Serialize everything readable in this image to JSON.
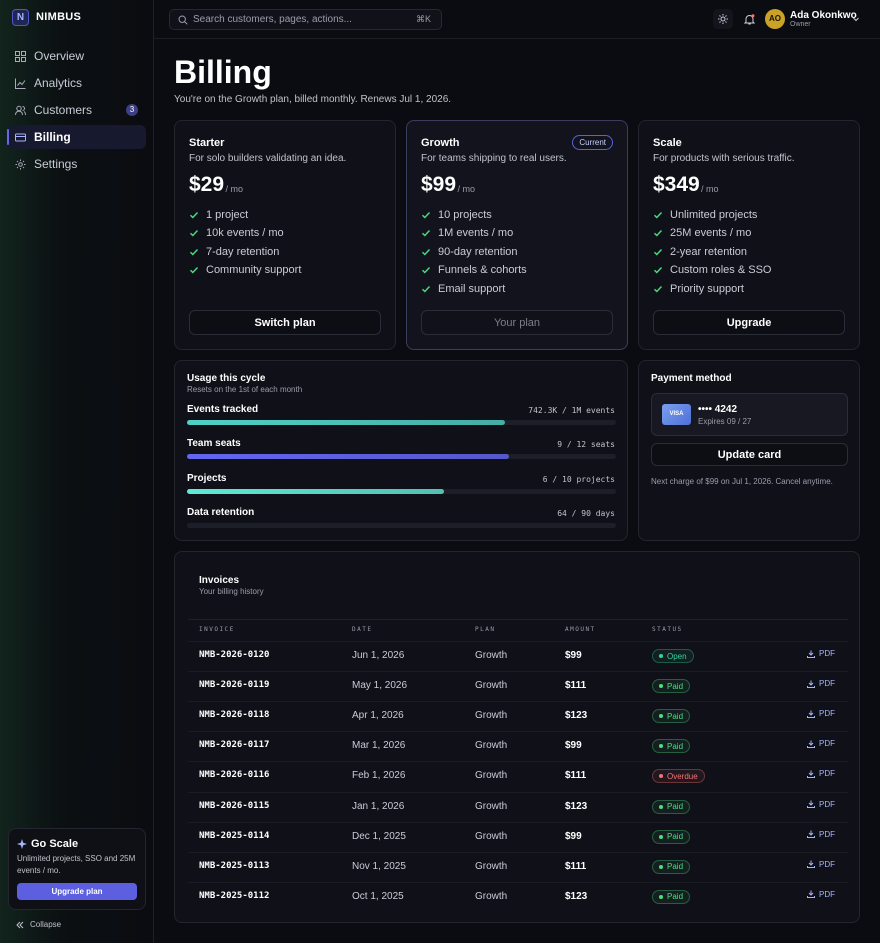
{
  "sidebar": {
    "logo": "N",
    "brand": "NIMBUS",
    "nav": [
      {
        "label": "Overview"
      },
      {
        "label": "Analytics"
      },
      {
        "label": "Customers",
        "badge": "3"
      },
      {
        "label": "Billing",
        "active": true
      },
      {
        "label": "Settings"
      }
    ],
    "promo": {
      "title": "Go Scale",
      "text": "Unlimited projects, SSO and 25M events / mo.",
      "button": "Upgrade plan"
    },
    "collapse": "Collapse"
  },
  "topbar": {
    "search_placeholder": "Search customers, pages, actions...",
    "shortcut": "⌘K",
    "user": {
      "initials": "AO",
      "name": "Ada Okonkwo",
      "role": "Owner"
    }
  },
  "header": {
    "title": "Billing",
    "subtitle": "You're on the Growth plan, billed monthly. Renews Jul 1, 2026."
  },
  "plans": [
    {
      "name": "Starter",
      "description": "For solo builders validating an idea.",
      "price": "$29",
      "period": "/ mo",
      "features": [
        "1 project",
        "10k events / mo",
        "7-day retention",
        "Community support"
      ],
      "button": "Switch plan"
    },
    {
      "name": "Growth",
      "badge": "Current",
      "current": true,
      "description": "For teams shipping to real users.",
      "price": "$99",
      "period": "/ mo",
      "features": [
        "10 projects",
        "1M events / mo",
        "90-day retention",
        "Funnels & cohorts",
        "Email support"
      ],
      "button": "Your plan"
    },
    {
      "name": "Scale",
      "description": "For products with serious traffic.",
      "price": "$349",
      "period": "/ mo",
      "features": [
        "Unlimited projects",
        "25M events / mo",
        "2-year retention",
        "Custom roles & SSO",
        "Priority support"
      ],
      "button": "Upgrade"
    }
  ],
  "usage": {
    "title": "Usage this cycle",
    "subtitle": "Resets on the 1st of each month",
    "items": [
      "Events tracked",
      "Team seats",
      "Projects",
      "Data retention"
    ],
    "values": [
      742300,
      9,
      6,
      64
    ],
    "limits": [
      1000000,
      12,
      10,
      90
    ],
    "value_labels": [
      "742.3K / 1M events",
      "9 / 12 seats",
      "6 / 10 projects",
      "64 / 90 days"
    ],
    "colors": [
      "#4fd1c5",
      "#6366f1",
      "#5eead4",
      "#1c1e28"
    ]
  },
  "payment": {
    "title": "Payment method",
    "card_brand": "VISA",
    "card_number": "•••• 4242",
    "expires": "Expires 09 / 27",
    "button": "Update card",
    "note": "Next charge of $99 on Jul 1, 2026. Cancel anytime."
  },
  "invoices": {
    "title": "Invoices",
    "subtitle": "Your billing history",
    "columns": [
      "INVOICE",
      "DATE",
      "PLAN",
      "AMOUNT",
      "STATUS"
    ],
    "action": "PDF",
    "rows": [
      {
        "cells": [
          "NMB-2026-0120",
          "Jun 1, 2026",
          "Growth",
          "$99"
        ],
        "status": "Open",
        "status_color": "#34d399"
      },
      {
        "cells": [
          "NMB-2026-0119",
          "May 1, 2026",
          "Growth",
          "$111"
        ],
        "status": "Paid",
        "status_color": "#4ade80"
      },
      {
        "cells": [
          "NMB-2026-0118",
          "Apr 1, 2026",
          "Growth",
          "$123"
        ],
        "status": "Paid",
        "status_color": "#4ade80"
      },
      {
        "cells": [
          "NMB-2026-0117",
          "Mar 1, 2026",
          "Growth",
          "$99"
        ],
        "status": "Paid",
        "status_color": "#4ade80"
      },
      {
        "cells": [
          "NMB-2026-0116",
          "Feb 1, 2026",
          "Growth",
          "$111"
        ],
        "status": "Overdue",
        "status_color": "#f87171"
      },
      {
        "cells": [
          "NMB-2026-0115",
          "Jan 1, 2026",
          "Growth",
          "$123"
        ],
        "status": "Paid",
        "status_color": "#4ade80"
      },
      {
        "cells": [
          "NMB-2025-0114",
          "Dec 1, 2025",
          "Growth",
          "$99"
        ],
        "status": "Paid",
        "status_color": "#4ade80"
      },
      {
        "cells": [
          "NMB-2025-0113",
          "Nov 1, 2025",
          "Growth",
          "$111"
        ],
        "status": "Paid",
        "status_color": "#4ade80"
      },
      {
        "cells": [
          "NMB-2025-0112",
          "Oct 1, 2025",
          "Growth",
          "$123"
        ],
        "status": "Paid",
        "status_color": "#4ade80"
      }
    ]
  }
}
